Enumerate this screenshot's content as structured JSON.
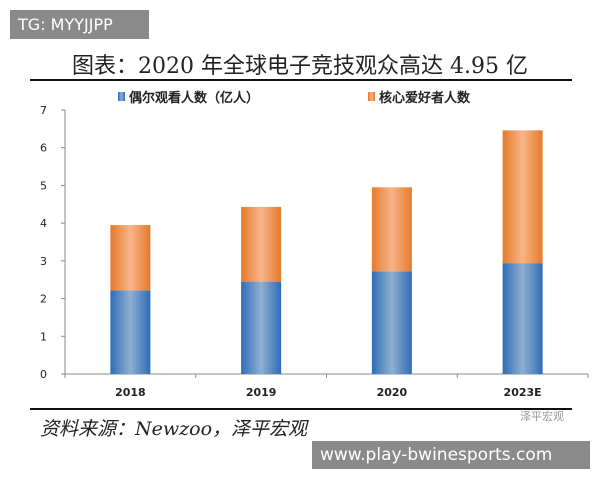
{
  "watermark_top": "TG: MYYJJPP",
  "watermark_bottom": "www.play-bwinesports.com",
  "source": "资料来源：Newzoo，泽平宏观",
  "brand": "泽平宏观",
  "chart_data": {
    "type": "bar",
    "stacked": true,
    "title": "图表：2020 年全球电子竞技观众高达 4.95 亿",
    "categories": [
      "2018",
      "2019",
      "2020",
      "2023E"
    ],
    "series": [
      {
        "name": "偶尔观看人数（亿人）",
        "color": "#3a78c2",
        "values": [
          2.22,
          2.45,
          2.72,
          2.94
        ]
      },
      {
        "name": "核心爱好者人数",
        "color": "#ef8a3c",
        "values": [
          1.73,
          1.98,
          2.23,
          3.52
        ]
      }
    ],
    "ylim": [
      0,
      7
    ],
    "yticks": [
      "0",
      "1",
      "2",
      "3",
      "4",
      "5",
      "6",
      "7"
    ],
    "legend": "top",
    "grid": false
  }
}
